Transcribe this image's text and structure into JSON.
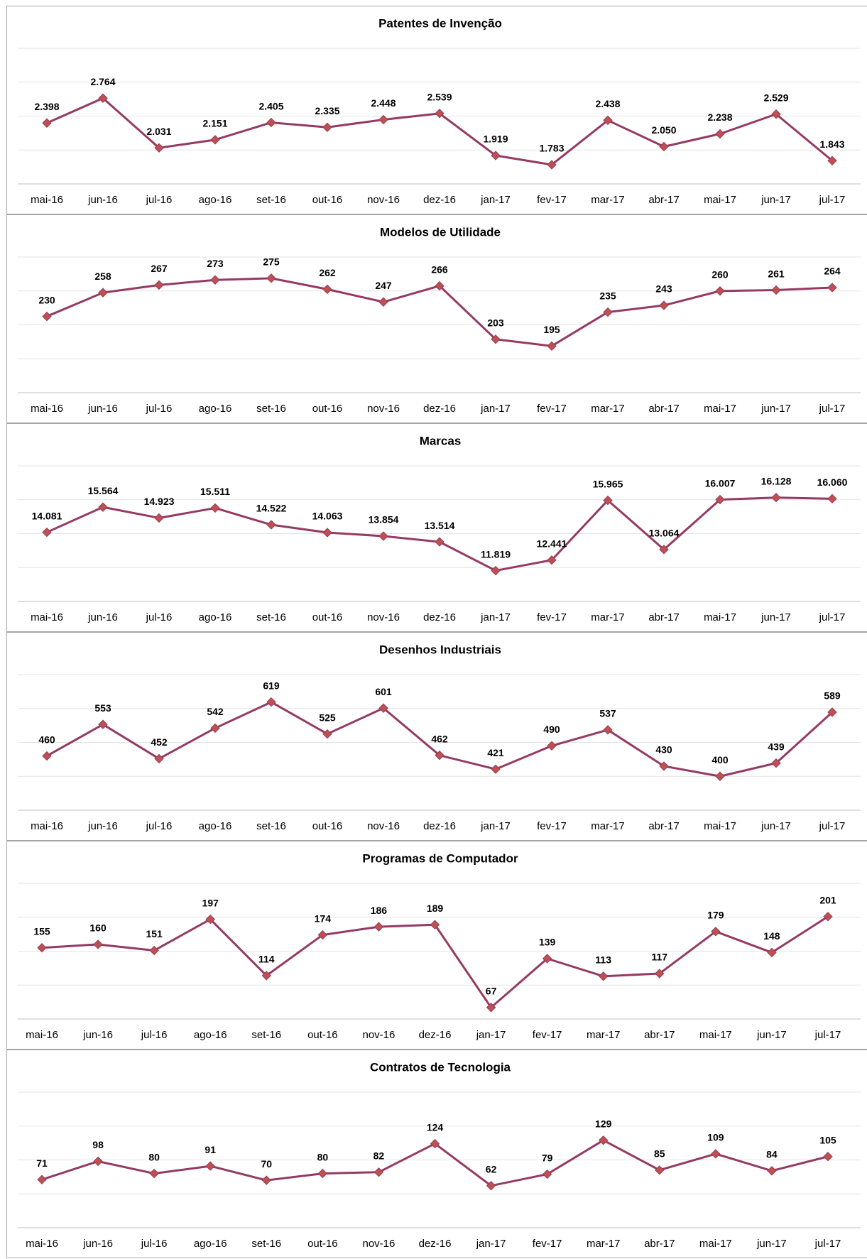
{
  "chart_data": [
    {
      "type": "line",
      "title": "Patentes de Invenção",
      "categories": [
        "mai-16",
        "jun-16",
        "jul-16",
        "ago-16",
        "set-16",
        "out-16",
        "nov-16",
        "dez-16",
        "jan-17",
        "fev-17",
        "mar-17",
        "abr-17",
        "mai-17",
        "jun-17",
        "jul-17"
      ],
      "values": [
        2398,
        2764,
        2031,
        2151,
        2405,
        2335,
        2448,
        2539,
        1919,
        1783,
        2438,
        2050,
        2238,
        2529,
        1843
      ],
      "value_labels": [
        "2.398",
        "2.764",
        "2.031",
        "2.151",
        "2.405",
        "2.335",
        "2.448",
        "2.539",
        "1.919",
        "1.783",
        "2.438",
        "2.050",
        "2.238",
        "2.529",
        "1.843"
      ],
      "color": "#953a62",
      "marker_color": "#c0504d",
      "ylim": [
        1500,
        3500
      ],
      "yticks": [
        1500,
        2000,
        2500,
        3000,
        3500
      ],
      "grid": true
    },
    {
      "type": "line",
      "title": "Modelos de Utilidade",
      "categories": [
        "mai-16",
        "jun-16",
        "jul-16",
        "ago-16",
        "set-16",
        "out-16",
        "nov-16",
        "dez-16",
        "jan-17",
        "fev-17",
        "mar-17",
        "abr-17",
        "mai-17",
        "jun-17",
        "jul-17"
      ],
      "values": [
        230,
        258,
        267,
        273,
        275,
        262,
        247,
        266,
        203,
        195,
        235,
        243,
        260,
        261,
        264
      ],
      "color": "#953a62",
      "marker_color": "#c0504d",
      "ylim": [
        140,
        300
      ],
      "yticks": [
        140,
        180,
        220,
        260,
        300
      ],
      "grid": true
    },
    {
      "type": "line",
      "title": "Marcas",
      "categories": [
        "mai-16",
        "jun-16",
        "jul-16",
        "ago-16",
        "set-16",
        "out-16",
        "nov-16",
        "dez-16",
        "jan-17",
        "fev-17",
        "mar-17",
        "abr-17",
        "mai-17",
        "jun-17",
        "jul-17"
      ],
      "values": [
        14081,
        15564,
        14923,
        15511,
        14522,
        14063,
        13854,
        13514,
        11819,
        12441,
        15965,
        13064,
        16007,
        16128,
        16060
      ],
      "value_labels": [
        "14.081",
        "15.564",
        "14.923",
        "15.511",
        "14.522",
        "14.063",
        "13.854",
        "13.514",
        "11.819",
        "12.441",
        "15.965",
        "13.064",
        "16.007",
        "16.128",
        "16.060"
      ],
      "color": "#953a62",
      "marker_color": "#c0504d",
      "ylim": [
        10000,
        18000
      ],
      "yticks": [
        10000,
        12000,
        14000,
        16000,
        18000
      ],
      "grid": true
    },
    {
      "type": "line",
      "title": "Desenhos Industriais",
      "categories": [
        "mai-16",
        "jun-16",
        "jul-16",
        "ago-16",
        "set-16",
        "out-16",
        "nov-16",
        "dez-16",
        "jan-17",
        "fev-17",
        "mar-17",
        "abr-17",
        "mai-17",
        "jun-17",
        "jul-17"
      ],
      "values": [
        460,
        553,
        452,
        542,
        619,
        525,
        601,
        462,
        421,
        490,
        537,
        430,
        400,
        439,
        589
      ],
      "color": "#953a62",
      "marker_color": "#c0504d",
      "ylim": [
        300,
        700
      ],
      "yticks": [
        300,
        400,
        500,
        600,
        700
      ],
      "grid": true
    },
    {
      "type": "line",
      "title": "Programas de Computador",
      "categories": [
        "mai-16",
        "jun-16",
        "jul-16",
        "ago-16",
        "set-16",
        "out-16",
        "nov-16",
        "dez-16",
        "jan-17",
        "fev-17",
        "mar-17",
        "abr-17",
        "mai-17",
        "jun-17",
        "jul-17"
      ],
      "values": [
        155,
        160,
        151,
        197,
        114,
        174,
        186,
        189,
        67,
        139,
        113,
        117,
        179,
        148,
        201
      ],
      "color": "#953a62",
      "marker_color": "#c0504d",
      "ylim": [
        50,
        250
      ],
      "yticks": [
        50,
        100,
        150,
        200,
        250
      ],
      "grid": true
    },
    {
      "type": "line",
      "title": "Contratos de Tecnologia",
      "categories": [
        "mai-16",
        "jun-16",
        "jul-16",
        "ago-16",
        "set-16",
        "out-16",
        "nov-16",
        "dez-16",
        "jan-17",
        "fev-17",
        "mar-17",
        "abr-17",
        "mai-17",
        "jun-17",
        "jul-17"
      ],
      "values": [
        71,
        98,
        80,
        91,
        70,
        80,
        82,
        124,
        62,
        79,
        129,
        85,
        109,
        84,
        105
      ],
      "color": "#953a62",
      "marker_color": "#c0504d",
      "ylim": [
        0,
        200
      ],
      "yticks": [
        0,
        50,
        100,
        150,
        200
      ],
      "grid": true
    }
  ]
}
